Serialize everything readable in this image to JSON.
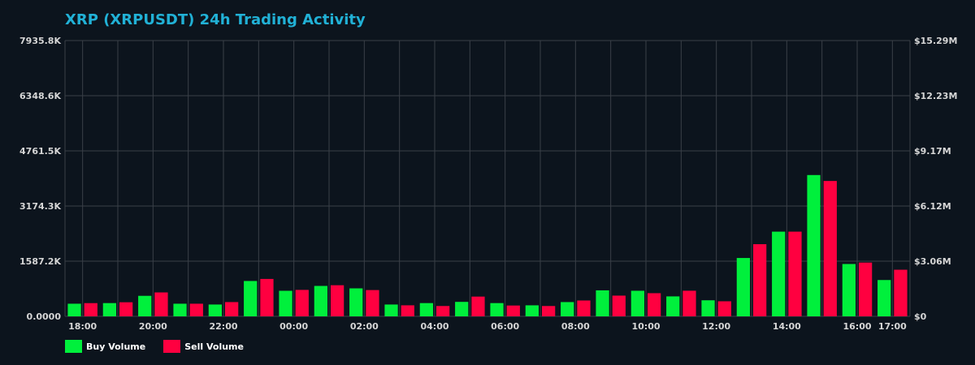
{
  "title": "XRP (XRPUSDT) 24h Trading Activity",
  "colors": {
    "background": "#0c141d",
    "grid": "#3a4048",
    "axis_text": "#d6d6d6",
    "title": "#21b1d6",
    "buy": "#00f03c",
    "sell": "#ff0040"
  },
  "legend": [
    {
      "label": "Buy Volume",
      "color": "#00f03c"
    },
    {
      "label": "Sell Volume",
      "color": "#ff0040"
    }
  ],
  "chart_data": {
    "type": "bar",
    "title": "XRP (XRPUSDT) 24h Trading Activity",
    "xlabel": "",
    "ylabel": "",
    "grid": true,
    "legend_position": "bottom-left",
    "x_ticks": [
      "18:00",
      "20:00",
      "22:00",
      "00:00",
      "02:00",
      "04:00",
      "06:00",
      "08:00",
      "10:00",
      "12:00",
      "14:00",
      "16:00",
      "17:00"
    ],
    "x_tick_hours": [
      18,
      20,
      22,
      24,
      26,
      28,
      30,
      32,
      34,
      36,
      38,
      40,
      41
    ],
    "x_range": [
      17.5,
      41.5
    ],
    "y_left": {
      "ticks": [
        "0.0000",
        "1587.2K",
        "3174.3K",
        "4761.5K",
        "6348.6K",
        "7935.8K"
      ],
      "range": [
        0,
        7935.8
      ]
    },
    "y_right": {
      "ticks": [
        "$0",
        "$3.06M",
        "$6.12M",
        "$9.17M",
        "$12.23M",
        "$15.29M"
      ]
    },
    "categories": [
      "18:00",
      "19:00",
      "20:00",
      "21:00",
      "22:00",
      "23:00",
      "00:00",
      "01:00",
      "02:00",
      "03:00",
      "04:00",
      "05:00",
      "06:00",
      "07:00",
      "08:00",
      "09:00",
      "10:00",
      "11:00",
      "12:00",
      "13:00",
      "14:00",
      "15:00",
      "16:00",
      "17:00"
    ],
    "series": [
      {
        "name": "Buy Volume",
        "values": [
          363,
          381,
          590,
          363,
          340,
          1017,
          735,
          875,
          805,
          340,
          381,
          416,
          381,
          317,
          410,
          748,
          736,
          574,
          462,
          1679,
          2437,
          4066,
          1506,
          1045
        ]
      },
      {
        "name": "Sell Volume",
        "values": [
          380,
          405,
          688,
          363,
          410,
          1076,
          761,
          895,
          756,
          317,
          297,
          568,
          311,
          297,
          456,
          596,
          666,
          737,
          433,
          2076,
          2437,
          3895,
          1547,
          1341
        ]
      }
    ]
  }
}
